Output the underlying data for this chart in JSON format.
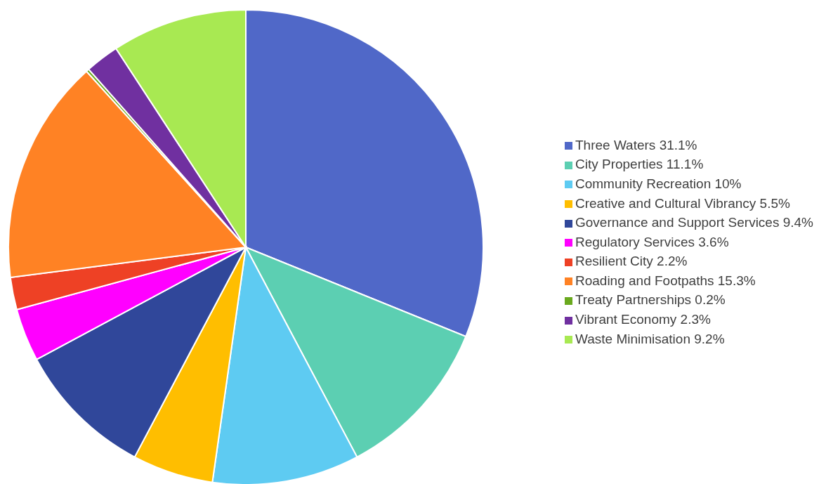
{
  "chart_data": {
    "type": "pie",
    "categories": [
      "Three Waters 31.1%",
      "City Properties 11.1%",
      "Community Recreation 10%",
      "Creative and Cultural Vibrancy 5.5%",
      "Governance and Support Services 9.4%",
      "Regulatory Services 3.6%",
      "Resilient City 2.2%",
      "Roading and Footpaths 15.3%",
      "Treaty Partnerships 0.2%",
      "Vibrant Economy 2.3%",
      "Waste Minimisation 9.2%"
    ],
    "values": [
      31.1,
      11.1,
      10,
      5.5,
      9.4,
      3.6,
      2.2,
      15.3,
      0.2,
      2.3,
      9.2
    ],
    "colors": [
      "#5068c8",
      "#5ccfb2",
      "#5ecbf2",
      "#ffbe00",
      "#30479a",
      "#ff00ff",
      "#ee4125",
      "#ff8224",
      "#6aa91e",
      "#7030a0",
      "#a8e952"
    ],
    "legend": "right"
  }
}
